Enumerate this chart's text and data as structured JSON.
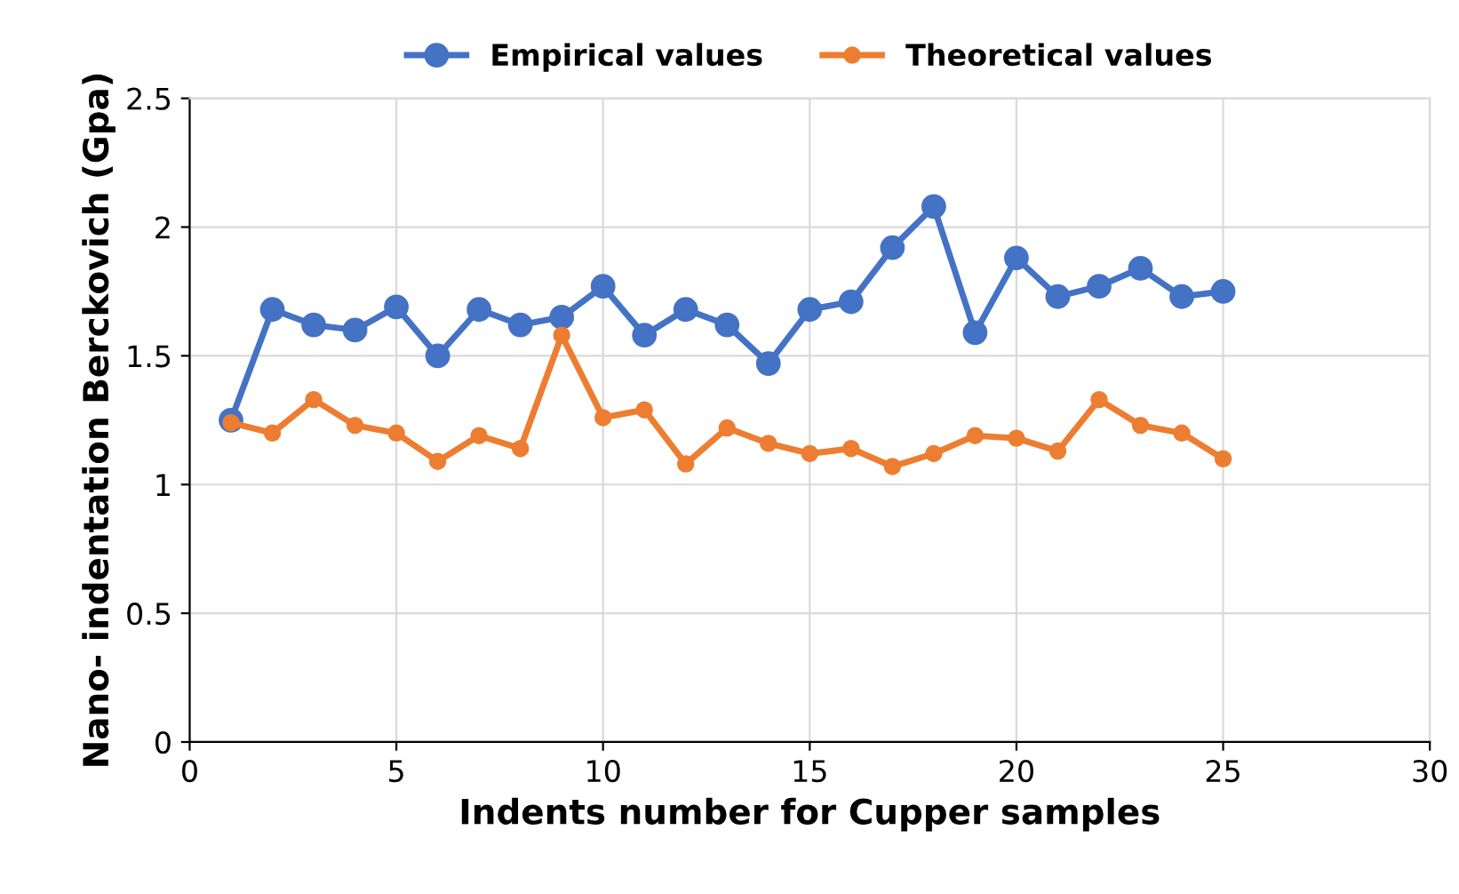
{
  "chart_data": {
    "type": "line",
    "xlabel": "Indents number for Cupper samples",
    "ylabel": "Nano- indentation Berckovich (Gpa)",
    "x": [
      1,
      2,
      3,
      4,
      5,
      6,
      7,
      8,
      9,
      10,
      11,
      12,
      13,
      14,
      15,
      16,
      17,
      18,
      19,
      20,
      21,
      22,
      23,
      24,
      25
    ],
    "series": [
      {
        "name": "Empirical values",
        "color": "#4472c4",
        "values": [
          1.25,
          1.68,
          1.62,
          1.6,
          1.69,
          1.5,
          1.68,
          1.62,
          1.65,
          1.77,
          1.58,
          1.68,
          1.62,
          1.47,
          1.68,
          1.71,
          1.92,
          2.08,
          1.59,
          1.88,
          1.73,
          1.77,
          1.84,
          1.73,
          1.75
        ]
      },
      {
        "name": "Theoretical values",
        "color": "#ed7d31",
        "values": [
          1.24,
          1.2,
          1.33,
          1.23,
          1.2,
          1.09,
          1.19,
          1.14,
          1.58,
          1.26,
          1.29,
          1.08,
          1.22,
          1.16,
          1.12,
          1.14,
          1.07,
          1.12,
          1.19,
          1.18,
          1.13,
          1.33,
          1.23,
          1.2,
          1.1
        ]
      }
    ],
    "xlim": [
      0,
      30
    ],
    "xticks": [
      0,
      5,
      10,
      15,
      20,
      25,
      30
    ],
    "ylim": [
      0,
      2.5
    ],
    "yticks": [
      0,
      0.5,
      1,
      1.5,
      2,
      2.5
    ],
    "grid": true,
    "legend": "top",
    "marker": "circle",
    "line_style": "solid"
  }
}
